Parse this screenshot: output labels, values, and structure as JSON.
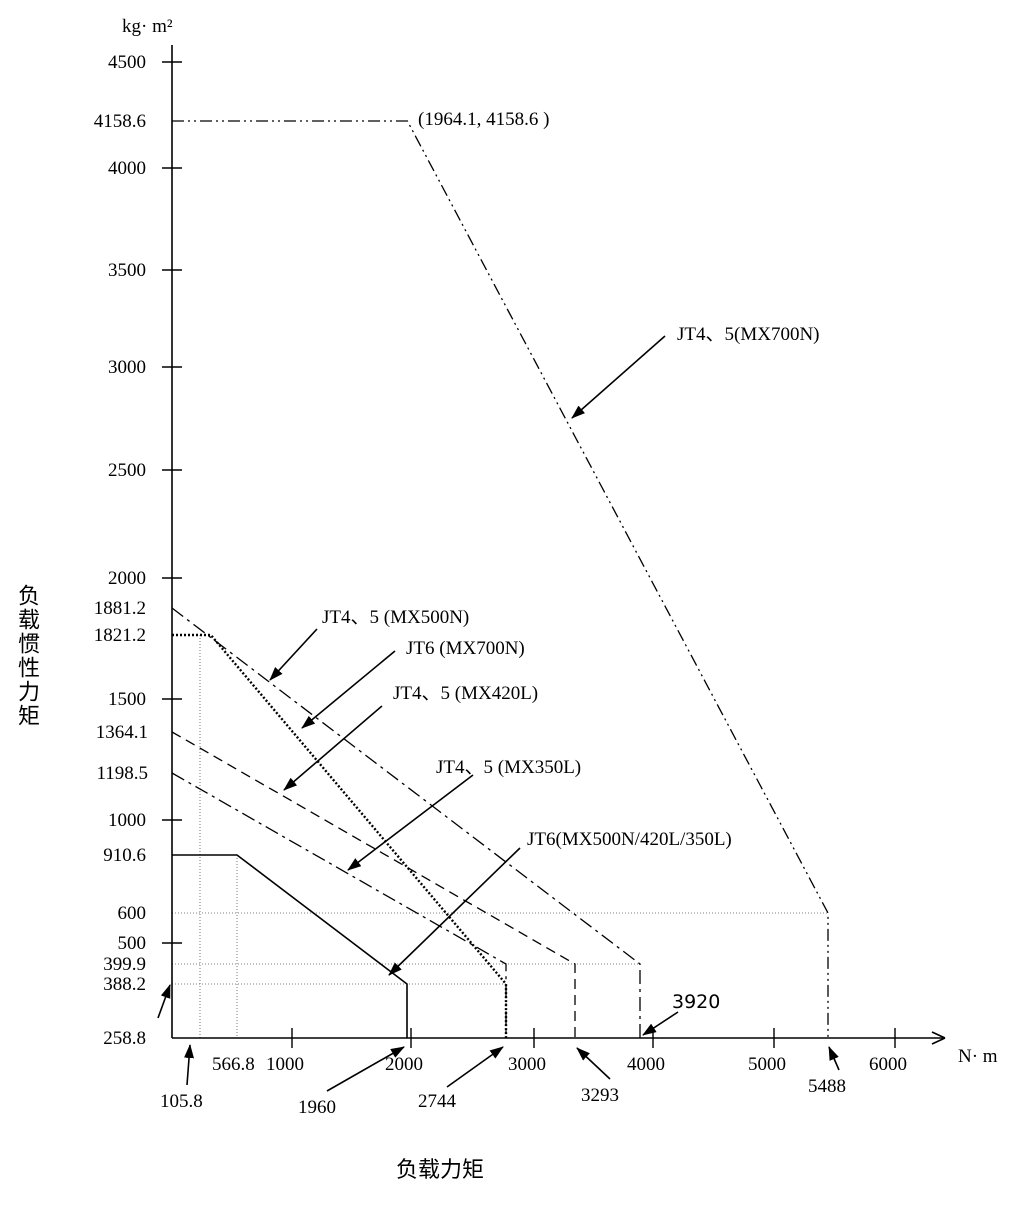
{
  "chart_data": {
    "type": "line",
    "y_unit": "kg· m²",
    "x_unit": "N· m",
    "ylabel": "负载惯性力矩",
    "xlabel": "负载力矩",
    "y_ticks": [
      "4500",
      "4000",
      "3500",
      "3000",
      "2500",
      "2000",
      "1500",
      "1000",
      "500"
    ],
    "y_special_labels": [
      "4158.6",
      "1881.2",
      "1821.2",
      "1364.1",
      "1198.5",
      "910.6",
      "600",
      "399.9",
      "388.2",
      "258.8"
    ],
    "x_ticks": [
      "1000",
      "2000",
      "3000",
      "4000",
      "5000",
      "6000"
    ],
    "x_special_labels": [
      "105.8",
      "566.8",
      "1960",
      "2744",
      "3293",
      "3920",
      "5488"
    ],
    "series": [
      {
        "name": "JT4、5(MX700N)",
        "style": "dash-dot-dot",
        "points": [
          [
            0,
            4158.6
          ],
          [
            1964.1,
            4158.6
          ],
          [
            5488,
            600
          ],
          [
            5488,
            0
          ]
        ]
      },
      {
        "name": "JT4、5 (MX500N)",
        "style": "dash-dot",
        "points": [
          [
            0,
            1881.2
          ],
          [
            3920,
            399.9
          ],
          [
            3920,
            0
          ]
        ]
      },
      {
        "name": "JT6 (MX700N)",
        "style": "dotted",
        "points": [
          [
            0,
            1821.2
          ],
          [
            240,
            1821.2
          ],
          [
            2744,
            388.2
          ],
          [
            2744,
            0
          ]
        ]
      },
      {
        "name": "JT4、5 (MX420L)",
        "style": "dashed",
        "points": [
          [
            0,
            1364.1
          ],
          [
            3293,
            399.9
          ],
          [
            3293,
            0
          ]
        ]
      },
      {
        "name": "JT4、5 (MX350L)",
        "style": "dash-dot",
        "points": [
          [
            0,
            1198.5
          ],
          [
            2744,
            399.9
          ],
          [
            2744,
            0
          ]
        ]
      },
      {
        "name": "JT6(MX500N/420L/350L)",
        "style": "solid",
        "points": [
          [
            0,
            910.6
          ],
          [
            566.8,
            910.6
          ],
          [
            1960,
            388.2
          ],
          [
            1960,
            0
          ]
        ]
      }
    ],
    "annotations": [
      "(1964.1, 4158.6 )"
    ]
  }
}
